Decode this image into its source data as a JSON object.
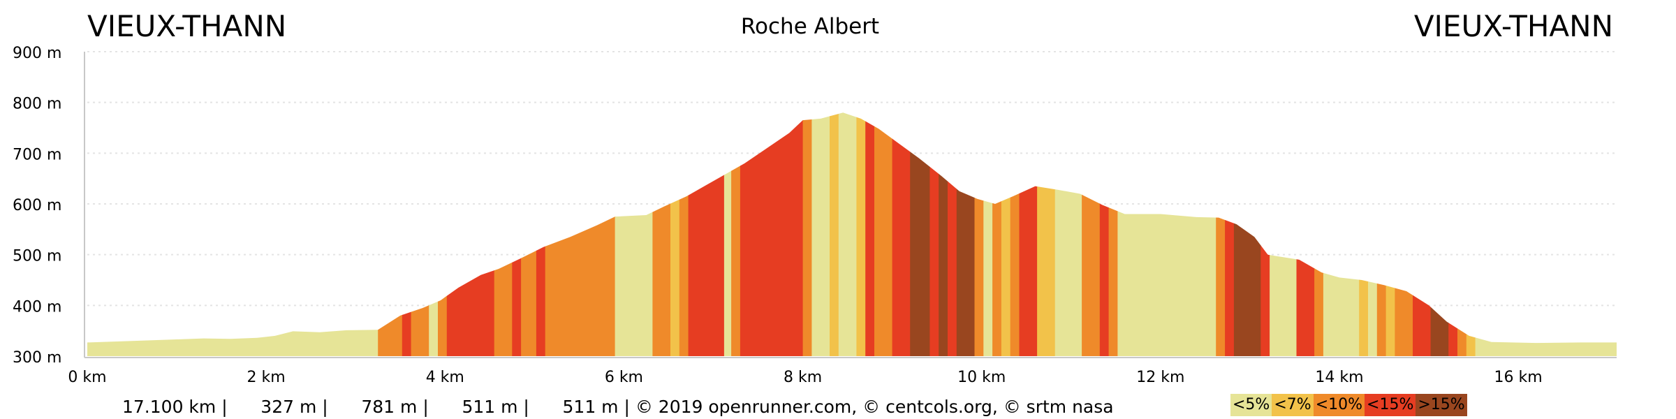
{
  "header": {
    "start_town": "VIEUX-THANN",
    "route_name": "Roche Albert",
    "end_town": "VIEUX-THANN"
  },
  "chart_data": {
    "type": "area",
    "xlabel": "",
    "ylabel": "",
    "xlim": [
      0,
      17.1
    ],
    "ylim": [
      300,
      900
    ],
    "x_unit": "km",
    "y_unit": "m",
    "x_ticks": [
      {
        "value": 0,
        "label": "0 km"
      },
      {
        "value": 2,
        "label": "2 km"
      },
      {
        "value": 4,
        "label": "4 km"
      },
      {
        "value": 6,
        "label": "6 km"
      },
      {
        "value": 8,
        "label": "8 km"
      },
      {
        "value": 10,
        "label": "10 km"
      },
      {
        "value": 12,
        "label": "12 km"
      },
      {
        "value": 14,
        "label": "14 km"
      },
      {
        "value": 16,
        "label": "16 km"
      }
    ],
    "y_ticks": [
      {
        "value": 300,
        "label": "300 m"
      },
      {
        "value": 400,
        "label": "400 m"
      },
      {
        "value": 500,
        "label": "500 m"
      },
      {
        "value": 600,
        "label": "600 m"
      },
      {
        "value": 700,
        "label": "700 m"
      },
      {
        "value": 800,
        "label": "800 m"
      },
      {
        "value": 900,
        "label": "900 m"
      }
    ],
    "grid": true,
    "profile": [
      [
        0,
        327
      ],
      [
        0.5,
        330
      ],
      [
        1.0,
        333
      ],
      [
        1.3,
        335
      ],
      [
        1.6,
        334
      ],
      [
        1.9,
        336
      ],
      [
        2.1,
        340
      ],
      [
        2.3,
        349
      ],
      [
        2.6,
        347
      ],
      [
        2.9,
        351
      ],
      [
        3.25,
        352
      ],
      [
        3.5,
        380
      ],
      [
        3.75,
        395
      ],
      [
        3.95,
        410
      ],
      [
        4.15,
        435
      ],
      [
        4.4,
        460
      ],
      [
        4.6,
        472
      ],
      [
        4.85,
        493
      ],
      [
        5.1,
        515
      ],
      [
        5.4,
        535
      ],
      [
        5.7,
        558
      ],
      [
        5.9,
        575
      ],
      [
        6.25,
        578
      ],
      [
        6.45,
        595
      ],
      [
        6.7,
        615
      ],
      [
        6.95,
        640
      ],
      [
        7.15,
        660
      ],
      [
        7.35,
        680
      ],
      [
        7.6,
        710
      ],
      [
        7.85,
        740
      ],
      [
        8.0,
        765
      ],
      [
        8.2,
        768
      ],
      [
        8.45,
        780
      ],
      [
        8.65,
        768
      ],
      [
        8.85,
        748
      ],
      [
        9.05,
        722
      ],
      [
        9.3,
        690
      ],
      [
        9.55,
        655
      ],
      [
        9.75,
        625
      ],
      [
        9.95,
        610
      ],
      [
        10.15,
        600
      ],
      [
        10.35,
        615
      ],
      [
        10.6,
        635
      ],
      [
        10.85,
        628
      ],
      [
        11.1,
        620
      ],
      [
        11.35,
        598
      ],
      [
        11.6,
        580
      ],
      [
        12.0,
        580
      ],
      [
        12.4,
        574
      ],
      [
        12.65,
        573
      ],
      [
        12.85,
        560
      ],
      [
        13.05,
        535
      ],
      [
        13.2,
        500
      ],
      [
        13.55,
        490
      ],
      [
        13.8,
        465
      ],
      [
        14.0,
        455
      ],
      [
        14.25,
        450
      ],
      [
        14.5,
        440
      ],
      [
        14.75,
        428
      ],
      [
        15.0,
        400
      ],
      [
        15.2,
        368
      ],
      [
        15.45,
        340
      ],
      [
        15.7,
        328
      ],
      [
        16.2,
        326
      ],
      [
        16.7,
        327
      ],
      [
        17.1,
        327
      ]
    ],
    "gradient_segments": [
      {
        "from": 0,
        "to": 3.25,
        "class": 0
      },
      {
        "from": 3.25,
        "to": 3.52,
        "class": 2
      },
      {
        "from": 3.52,
        "to": 3.62,
        "class": 3
      },
      {
        "from": 3.62,
        "to": 3.82,
        "class": 2
      },
      {
        "from": 3.82,
        "to": 3.92,
        "class": 0
      },
      {
        "from": 3.92,
        "to": 4.02,
        "class": 2
      },
      {
        "from": 4.02,
        "to": 4.55,
        "class": 3
      },
      {
        "from": 4.55,
        "to": 4.75,
        "class": 2
      },
      {
        "from": 4.75,
        "to": 4.85,
        "class": 3
      },
      {
        "from": 4.85,
        "to": 5.02,
        "class": 2
      },
      {
        "from": 5.02,
        "to": 5.12,
        "class": 3
      },
      {
        "from": 5.12,
        "to": 5.9,
        "class": 2
      },
      {
        "from": 5.9,
        "to": 6.32,
        "class": 0
      },
      {
        "from": 6.32,
        "to": 6.52,
        "class": 2
      },
      {
        "from": 6.52,
        "to": 6.62,
        "class": 1
      },
      {
        "from": 6.62,
        "to": 6.72,
        "class": 2
      },
      {
        "from": 6.72,
        "to": 7.12,
        "class": 3
      },
      {
        "from": 7.12,
        "to": 7.2,
        "class": 0
      },
      {
        "from": 7.2,
        "to": 7.3,
        "class": 2
      },
      {
        "from": 7.3,
        "to": 8.0,
        "class": 3
      },
      {
        "from": 8.0,
        "to": 8.1,
        "class": 2
      },
      {
        "from": 8.1,
        "to": 8.3,
        "class": 0
      },
      {
        "from": 8.3,
        "to": 8.4,
        "class": 1
      },
      {
        "from": 8.4,
        "to": 8.6,
        "class": 0
      },
      {
        "from": 8.6,
        "to": 8.7,
        "class": 1
      },
      {
        "from": 8.7,
        "to": 8.8,
        "class": 3
      },
      {
        "from": 8.8,
        "to": 9.0,
        "class": 2
      },
      {
        "from": 9.0,
        "to": 9.2,
        "class": 3
      },
      {
        "from": 9.2,
        "to": 9.42,
        "class": 4
      },
      {
        "from": 9.42,
        "to": 9.52,
        "class": 3
      },
      {
        "from": 9.52,
        "to": 9.62,
        "class": 4
      },
      {
        "from": 9.62,
        "to": 9.72,
        "class": 3
      },
      {
        "from": 9.72,
        "to": 9.92,
        "class": 4
      },
      {
        "from": 9.92,
        "to": 10.02,
        "class": 2
      },
      {
        "from": 10.02,
        "to": 10.12,
        "class": 0
      },
      {
        "from": 10.12,
        "to": 10.22,
        "class": 2
      },
      {
        "from": 10.22,
        "to": 10.32,
        "class": 1
      },
      {
        "from": 10.32,
        "to": 10.42,
        "class": 2
      },
      {
        "from": 10.42,
        "to": 10.62,
        "class": 3
      },
      {
        "from": 10.62,
        "to": 10.82,
        "class": 1
      },
      {
        "from": 10.82,
        "to": 11.12,
        "class": 0
      },
      {
        "from": 11.12,
        "to": 11.32,
        "class": 2
      },
      {
        "from": 11.32,
        "to": 11.42,
        "class": 3
      },
      {
        "from": 11.42,
        "to": 11.52,
        "class": 2
      },
      {
        "from": 11.52,
        "to": 12.62,
        "class": 0
      },
      {
        "from": 12.62,
        "to": 12.72,
        "class": 2
      },
      {
        "from": 12.72,
        "to": 12.82,
        "class": 3
      },
      {
        "from": 12.82,
        "to": 13.12,
        "class": 4
      },
      {
        "from": 13.12,
        "to": 13.22,
        "class": 3
      },
      {
        "from": 13.22,
        "to": 13.52,
        "class": 0
      },
      {
        "from": 13.52,
        "to": 13.72,
        "class": 3
      },
      {
        "from": 13.72,
        "to": 13.82,
        "class": 2
      },
      {
        "from": 13.82,
        "to": 14.22,
        "class": 0
      },
      {
        "from": 14.22,
        "to": 14.32,
        "class": 1
      },
      {
        "from": 14.32,
        "to": 14.42,
        "class": 0
      },
      {
        "from": 14.42,
        "to": 14.52,
        "class": 2
      },
      {
        "from": 14.52,
        "to": 14.62,
        "class": 1
      },
      {
        "from": 14.62,
        "to": 14.82,
        "class": 2
      },
      {
        "from": 14.82,
        "to": 15.02,
        "class": 3
      },
      {
        "from": 15.02,
        "to": 15.22,
        "class": 4
      },
      {
        "from": 15.22,
        "to": 15.32,
        "class": 3
      },
      {
        "from": 15.32,
        "to": 15.42,
        "class": 2
      },
      {
        "from": 15.42,
        "to": 15.52,
        "class": 1
      },
      {
        "from": 15.52,
        "to": 15.62,
        "class": 0
      },
      {
        "from": 15.62,
        "to": 17.1,
        "class": 0
      }
    ],
    "gradient_classes": [
      {
        "label": "<5%",
        "color": "#e6e497"
      },
      {
        "label": "<7%",
        "color": "#f2c24a"
      },
      {
        "label": "<10%",
        "color": "#ef8a2a"
      },
      {
        "label": "<15%",
        "color": "#e63d22"
      },
      {
        "label": ">15%",
        "color": "#99461f"
      }
    ]
  },
  "footer": {
    "stats_text": "17.100 km |      327 m |      781 m |      511 m |      511 m | © 2019 openrunner.com, © centcols.org, © srtm nasa"
  },
  "colors": {
    "grid": "#e4e4e4",
    "axis": "#c8c8c8",
    "legend_text": "#000000"
  }
}
